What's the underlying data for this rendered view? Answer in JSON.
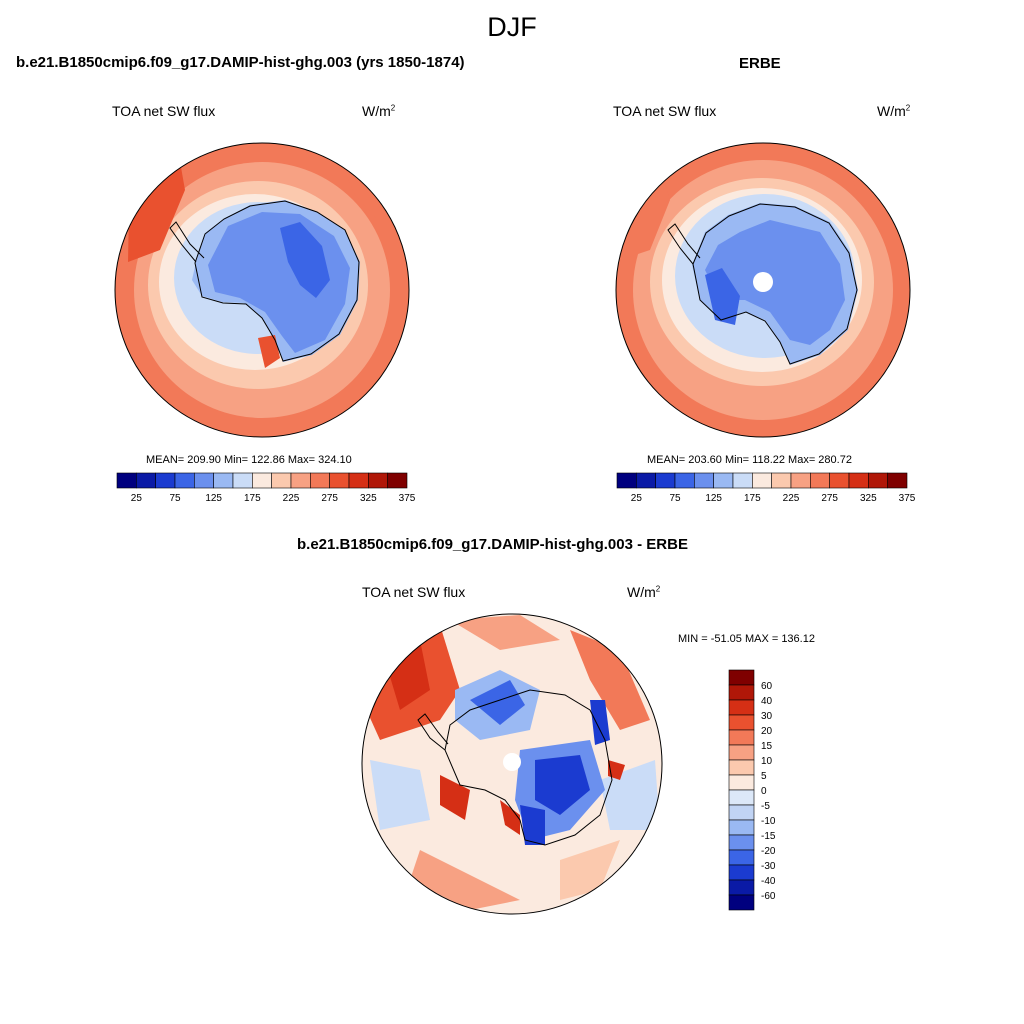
{
  "title": "DJF",
  "panels": [
    {
      "heading": "b.e21.B1850cmip6.f09_g17.DAMIP-hist-ghg.003 (yrs 1850-1874)",
      "variable": "TOA net SW flux",
      "units_base": "W/m",
      "units_exp": "2",
      "stats": "MEAN= 209.90  Min= 122.86  Max= 324.10"
    },
    {
      "heading": "ERBE",
      "variable": "TOA net SW flux",
      "units_base": "W/m",
      "units_exp": "2",
      "stats": "MEAN= 203.60  Min= 118.22  Max= 280.72"
    },
    {
      "heading": "b.e21.B1850cmip6.f09_g17.DAMIP-hist-ghg.003 - ERBE",
      "variable": "TOA net SW flux",
      "units_base": "W/m",
      "units_exp": "2",
      "stats": "MIN = -51.05 MAX = 136.12"
    }
  ],
  "abs_colorbar": {
    "colors": [
      "#00007f",
      "#0a1aa6",
      "#1b3bd0",
      "#3b65e6",
      "#6b90ee",
      "#9ab9f3",
      "#cadcf7",
      "#fbeadf",
      "#fbc9ae",
      "#f7a183",
      "#f27958",
      "#e9512f",
      "#d52f15",
      "#b01708",
      "#7f0000"
    ],
    "labels": [
      "25",
      "75",
      "125",
      "175",
      "225",
      "275",
      "325",
      "375"
    ]
  },
  "diff_colorbar": {
    "colors": [
      "#7f0000",
      "#b01708",
      "#d52f15",
      "#e9512f",
      "#f27958",
      "#f7a183",
      "#fbc9ae",
      "#fbeadf",
      "#dce8f8",
      "#c1d4f4",
      "#9ab9f3",
      "#6b90ee",
      "#3b65e6",
      "#1b3bd0",
      "#0a1aa6",
      "#00007f"
    ],
    "labels": [
      "60",
      "40",
      "30",
      "20",
      "15",
      "10",
      "5",
      "0",
      "-5",
      "-10",
      "-15",
      "-20",
      "-30",
      "-40",
      "-60"
    ]
  }
}
